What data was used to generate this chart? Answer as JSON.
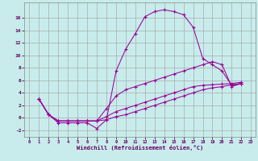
{
  "background_color": "#c8ecec",
  "grid_color": "#aaaaaa",
  "line_color": "#990099",
  "xlabel": "Windchill (Refroidissement éolien,°C)",
  "xlim": [
    -0.5,
    23.5
  ],
  "ylim": [
    -3,
    18.5
  ],
  "xticks": [
    0,
    1,
    2,
    3,
    4,
    5,
    6,
    7,
    8,
    9,
    10,
    11,
    12,
    13,
    14,
    15,
    16,
    17,
    18,
    19,
    20,
    21,
    22,
    23
  ],
  "yticks": [
    -2,
    0,
    2,
    4,
    6,
    8,
    10,
    12,
    14,
    16
  ],
  "s1_x": [
    1,
    2,
    3,
    4,
    5,
    6,
    7,
    8,
    9,
    10,
    11,
    12,
    13,
    14,
    15,
    16,
    17,
    18,
    19,
    20,
    21,
    22
  ],
  "s1_y": [
    3.0,
    0.5,
    -0.8,
    -0.8,
    -0.8,
    -0.8,
    -1.7,
    -0.3,
    7.5,
    11.0,
    13.5,
    16.2,
    17.0,
    17.3,
    17.0,
    16.5,
    14.5,
    9.5,
    8.5,
    7.5,
    5.2,
    5.5
  ],
  "s2_x": [
    1,
    2,
    3,
    4,
    5,
    6,
    7,
    8,
    9,
    10,
    11,
    12,
    13,
    14,
    15,
    16,
    17,
    18,
    19,
    20,
    21,
    22
  ],
  "s2_y": [
    3.0,
    0.5,
    -0.5,
    -0.5,
    -0.5,
    -0.5,
    -0.5,
    1.5,
    3.5,
    4.5,
    5.0,
    5.5,
    6.0,
    6.5,
    7.0,
    7.5,
    8.0,
    8.5,
    9.0,
    8.5,
    5.0,
    5.5
  ],
  "s3_x": [
    1,
    2,
    3,
    4,
    5,
    6,
    7,
    8,
    9,
    10,
    11,
    12,
    13,
    14,
    15,
    16,
    17,
    18,
    19,
    20,
    21,
    22
  ],
  "s3_y": [
    3.0,
    0.5,
    -0.5,
    -0.5,
    -0.5,
    -0.5,
    -0.5,
    0.2,
    1.0,
    1.5,
    2.0,
    2.5,
    3.0,
    3.5,
    4.0,
    4.5,
    5.0,
    5.2,
    5.3,
    5.4,
    5.5,
    5.7
  ],
  "s4_x": [
    1,
    2,
    3,
    4,
    5,
    6,
    7,
    8,
    9,
    10,
    11,
    12,
    13,
    14,
    15,
    16,
    17,
    18,
    19,
    20,
    21,
    22
  ],
  "s4_y": [
    3.0,
    0.5,
    -0.5,
    -0.5,
    -0.5,
    -0.5,
    -0.5,
    -0.3,
    0.2,
    0.5,
    1.0,
    1.5,
    2.0,
    2.5,
    3.0,
    3.5,
    4.0,
    4.5,
    4.8,
    5.0,
    5.3,
    5.5
  ]
}
